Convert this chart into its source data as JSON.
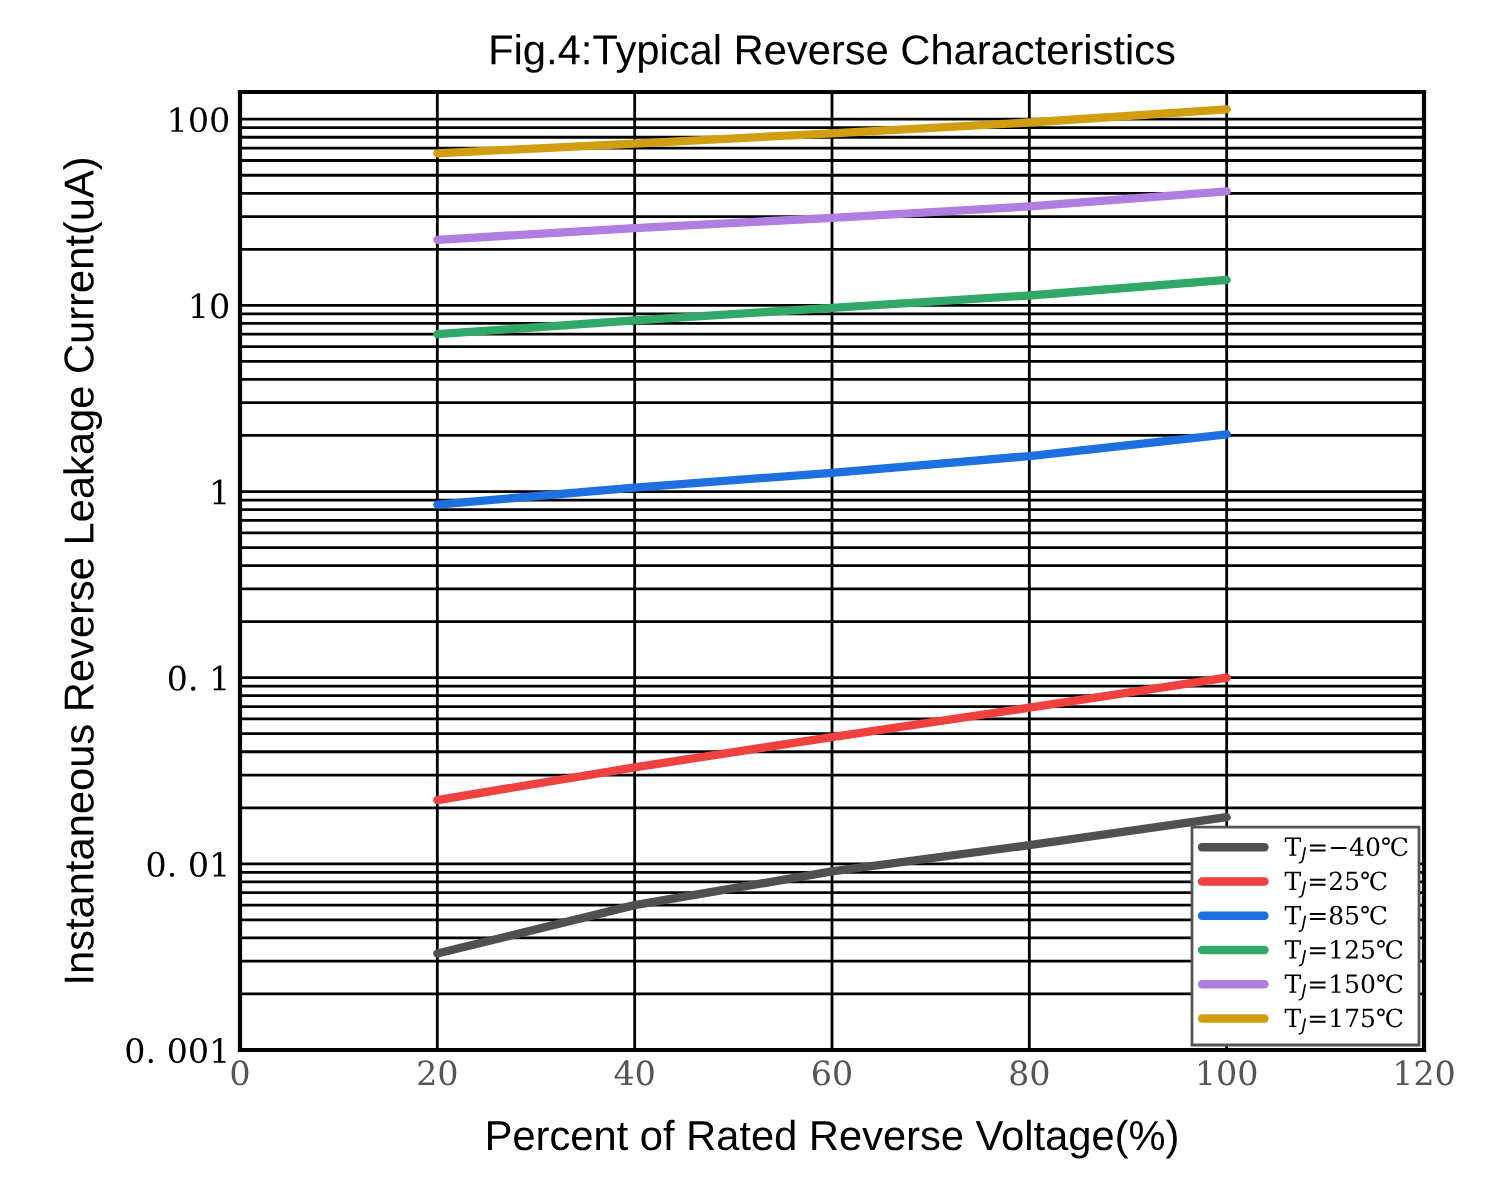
{
  "chart_data": {
    "type": "line",
    "title": "Fig.4:Typical Reverse Characteristics",
    "xlabel": "Percent of Rated Reverse Voltage(%)",
    "ylabel": "Instantaneous Reverse Leakage Current(uA)",
    "x": [
      20,
      40,
      60,
      80,
      100
    ],
    "series": [
      {
        "name": "T$_{J}$=−40℃",
        "color": "#505050",
        "values": [
          0.0033,
          0.006,
          0.0091,
          0.0126,
          0.0178
        ]
      },
      {
        "name": "T$_{J}$=25℃",
        "color": "#f04040",
        "values": [
          0.022,
          0.033,
          0.048,
          0.069,
          0.1
        ]
      },
      {
        "name": "T$_{J}$=85℃",
        "color": "#1e6fe0",
        "values": [
          0.85,
          1.05,
          1.26,
          1.55,
          2.03
        ]
      },
      {
        "name": "T$_{J}$=125℃",
        "color": "#30a868",
        "values": [
          7.0,
          8.3,
          9.7,
          11.3,
          13.7
        ]
      },
      {
        "name": "T$_{J}$=150℃",
        "color": "#b07ee0",
        "values": [
          22.5,
          26,
          29.5,
          34,
          41
        ]
      },
      {
        "name": "T$_{J}$=175℃",
        "color": "#d09e10",
        "values": [
          65.6,
          74,
          84,
          96,
          113
        ]
      }
    ],
    "log": "y",
    "xlim": [
      0,
      120
    ],
    "xticks": [
      0,
      20,
      40,
      60,
      80,
      100,
      120
    ],
    "ylim": [
      0.001,
      140
    ],
    "yticks": [
      {
        "value": 0.001,
        "label": "0. 001"
      },
      {
        "value": 0.01,
        "label": "0. 01"
      },
      {
        "value": 0.1,
        "label": "0. 1"
      },
      1,
      10,
      100
    ],
    "grid": true,
    "legend": "bottom right",
    "line_style": "solid",
    "marker": "none"
  }
}
